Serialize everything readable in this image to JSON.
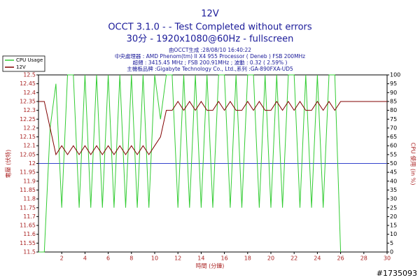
{
  "chart_data": {
    "type": "line",
    "title": "12V",
    "subtitle": [
      "OCCT 3.1.0 -  - Test Completed without errors",
      "30分 - 1920x1080@60Hz - fullscreen"
    ],
    "info": [
      "由OCCT生成 :28/08/10 16:40:22",
      "中央處理器 : AMD Phenom(tm) II X4 955 Processor ( Deneb ) FSB 200MHz",
      "超頻 : 3415.45 MHz ; FSB 200.91MHz ; 波動 : 0.32 ( 2.59% )",
      "主機板品牌 :Gigabyte Technology Co., Ltd.,系列 :GA-890FXA-UD5"
    ],
    "xlabel": "時間 (分鐘)",
    "ylabel": "電壓 (伏特)",
    "y2label": "CPU 使用 (in %)",
    "watermark": "#1735093",
    "x": [
      0,
      0.5,
      1,
      1.5,
      2,
      2.5,
      3,
      3.5,
      4,
      4.5,
      5,
      5.5,
      6,
      6.5,
      7,
      7.5,
      8,
      8.5,
      9,
      9.5,
      10,
      10.5,
      11,
      11.5,
      12,
      12.5,
      13,
      13.5,
      14,
      14.5,
      15,
      15.5,
      16,
      16.5,
      17,
      17.5,
      18,
      18.5,
      19,
      19.5,
      20,
      20.5,
      21,
      21.5,
      22,
      22.5,
      23,
      23.5,
      24,
      24.5,
      25,
      25.5,
      26,
      26.5,
      27,
      27.5,
      28,
      28.5,
      29,
      29.5,
      30
    ],
    "series": [
      {
        "name": "CPU Usage",
        "color": "#33cc33",
        "axis": "y2",
        "values": [
          0,
          0,
          70,
          95,
          25,
          100,
          100,
          25,
          100,
          25,
          100,
          25,
          100,
          25,
          100,
          25,
          100,
          25,
          100,
          25,
          100,
          75,
          100,
          100,
          25,
          100,
          25,
          100,
          25,
          100,
          25,
          100,
          100,
          25,
          100,
          25,
          100,
          100,
          25,
          100,
          25,
          100,
          25,
          100,
          100,
          25,
          100,
          25,
          100,
          25,
          100,
          100,
          0,
          null,
          null,
          null,
          null,
          null,
          null,
          null,
          null
        ]
      },
      {
        "name": "12V",
        "color": "#800000",
        "values": [
          12.35,
          12.35,
          12.2,
          12.05,
          12.1,
          12.05,
          12.1,
          12.05,
          12.1,
          12.05,
          12.1,
          12.05,
          12.1,
          12.05,
          12.1,
          12.05,
          12.1,
          12.05,
          12.1,
          12.05,
          12.1,
          12.15,
          12.3,
          12.3,
          12.35,
          12.3,
          12.35,
          12.3,
          12.35,
          12.3,
          12.3,
          12.35,
          12.3,
          12.35,
          12.3,
          12.3,
          12.35,
          12.3,
          12.35,
          12.3,
          12.3,
          12.35,
          12.3,
          12.35,
          12.3,
          12.35,
          12.3,
          12.3,
          12.35,
          12.3,
          12.35,
          12.3,
          12.35,
          12.35,
          12.35,
          12.35,
          12.35,
          12.35,
          12.35,
          12.35,
          12.35
        ]
      }
    ],
    "hline": {
      "value": 12,
      "color": "#3344cc"
    },
    "xlim": [
      0,
      30
    ],
    "xticks": [
      2,
      4,
      6,
      8,
      10,
      12,
      14,
      16,
      18,
      20,
      22,
      24,
      26,
      28,
      30
    ],
    "ylim": [
      11.5,
      12.5
    ],
    "yticks": [
      11.5,
      11.55,
      11.6,
      11.65,
      11.7,
      11.75,
      11.8,
      11.85,
      11.9,
      11.95,
      12,
      12.05,
      12.1,
      12.15,
      12.2,
      12.25,
      12.3,
      12.35,
      12.4,
      12.45,
      12.5
    ],
    "y2lim": [
      0,
      100
    ],
    "y2ticks": [
      0,
      5,
      10,
      15,
      20,
      25,
      30,
      35,
      40,
      45,
      50,
      55,
      60,
      65,
      70,
      75,
      80,
      85,
      90,
      95,
      100
    ],
    "grid": false,
    "legend": "top-left"
  }
}
